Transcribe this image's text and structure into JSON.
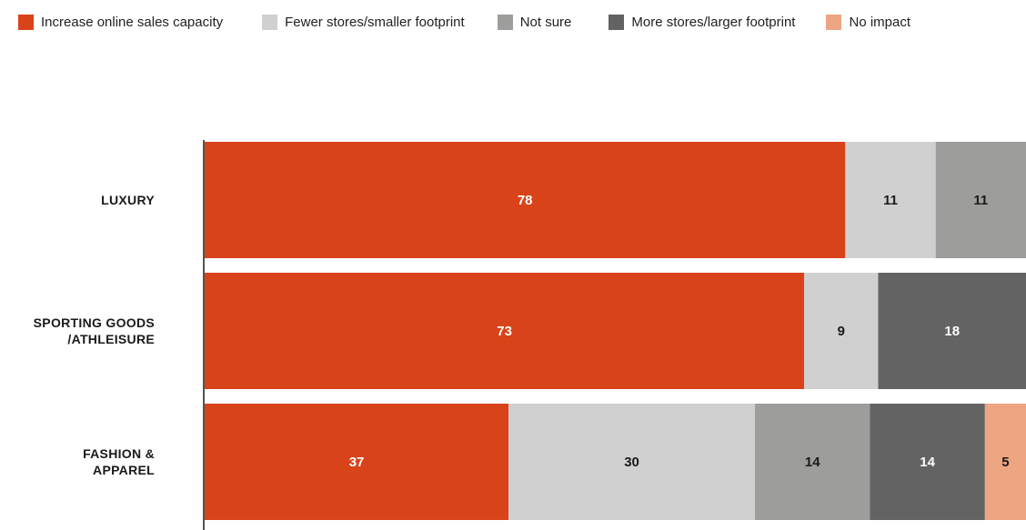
{
  "chart_data": {
    "type": "bar",
    "orientation": "horizontal",
    "stacked": true,
    "legend_position": "top",
    "grid": false,
    "xlim": [
      0,
      100
    ],
    "categories": [
      [
        "LUXURY"
      ],
      [
        "SPORTING GOODS",
        "/ATHLEISURE"
      ],
      [
        "FASHION &",
        "APPAREL"
      ]
    ],
    "series": [
      {
        "name": "Increase online sales capacity",
        "color": "#d9431a",
        "text_color": "#ffffff",
        "values": [
          78,
          73,
          37
        ]
      },
      {
        "name": "Fewer stores/smaller footprint",
        "color": "#d0d0d0",
        "text_color": "#1a1a1a",
        "values": [
          11,
          9,
          30
        ]
      },
      {
        "name": "Not sure",
        "color": "#9d9d9b",
        "text_color": "#1a1a1a",
        "values": [
          11,
          null,
          14
        ]
      },
      {
        "name": "More stores/larger footprint",
        "color": "#636363",
        "text_color": "#ffffff",
        "values": [
          null,
          18,
          14
        ]
      },
      {
        "name": "No impact",
        "color": "#eda582",
        "text_color": "#1a1a1a",
        "values": [
          null,
          null,
          5
        ]
      }
    ]
  }
}
